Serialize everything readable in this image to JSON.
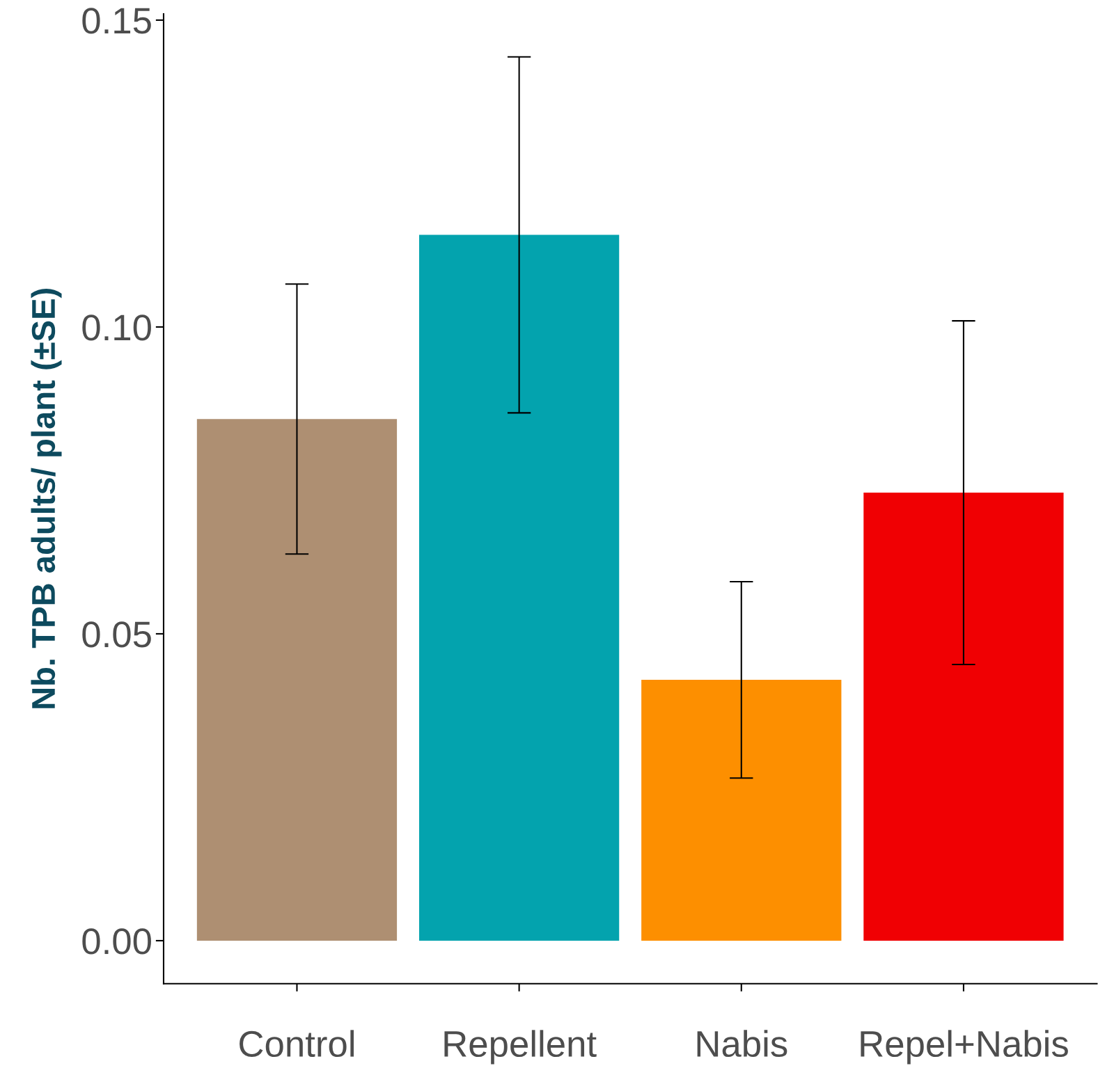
{
  "chart_data": {
    "type": "bar",
    "ylabel": "Nb. TPB adults/ plant (±SE)",
    "categories": [
      "Control",
      "Repellent",
      "Nabis",
      "Repel+Nabis"
    ],
    "values": [
      0.085,
      0.115,
      0.0425,
      0.073
    ],
    "errors": [
      0.022,
      0.029,
      0.016,
      0.028
    ],
    "colors": [
      "#ae8f72",
      "#03a3ae",
      "#fd8f00",
      "#f00003"
    ],
    "ylim": [
      -0.007,
      0.151
    ],
    "yticks": [
      {
        "value": 0,
        "label": "0.00"
      },
      {
        "value": 0.05,
        "label": "0.05"
      },
      {
        "value": 0.1,
        "label": "0.10"
      },
      {
        "value": 0.15,
        "label": "0.15"
      }
    ],
    "grid": false
  }
}
